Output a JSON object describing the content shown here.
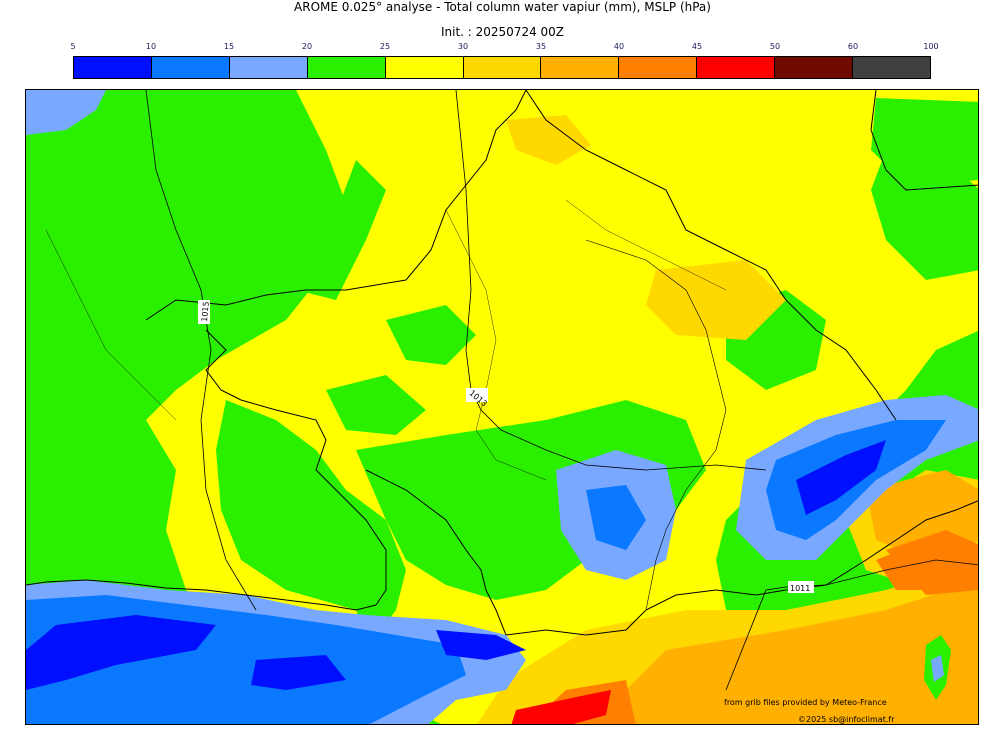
{
  "title": "AROME 0.025° analyse - Total column water vapiur (mm), MSLP (hPa)",
  "subtitle": "Init. : 20250724 00Z",
  "colorbar": {
    "ticks": [
      "5",
      "10",
      "15",
      "20",
      "25",
      "30",
      "35",
      "40",
      "45",
      "50",
      "60",
      "100"
    ],
    "colors": [
      "#0010ff",
      "#0a78ff",
      "#78a8ff",
      "#2af000",
      "#ffff00",
      "#ffd800",
      "#ffb000",
      "#ff8000",
      "#ff0000",
      "#6e0a00",
      "#404040"
    ]
  },
  "isobars": [
    "1015",
    "1013",
    "1011"
  ],
  "credits": {
    "source": "from grib files provided by Meteo-France",
    "copyright": "©2025 sb@infoclimat.fr"
  }
}
